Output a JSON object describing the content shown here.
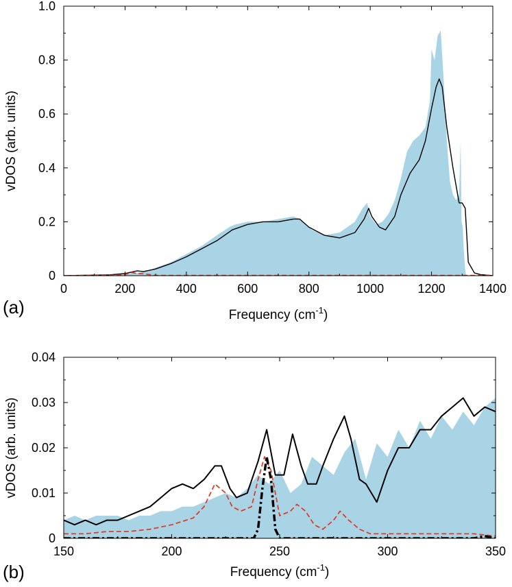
{
  "chart_data": [
    {
      "panel_label": "(a)",
      "type": "area",
      "xlabel": "Frequency (cm",
      "xlabel_sup": "-1",
      "xlabel_close": ")",
      "ylabel": "vDOS (arb. units)",
      "xlim": [
        0,
        1400
      ],
      "ylim": [
        0,
        1.0
      ],
      "xticks": [
        0,
        200,
        400,
        600,
        800,
        1000,
        1200,
        1400
      ],
      "yticks": [
        0,
        0.2,
        0.4,
        0.6,
        0.8,
        1.0
      ],
      "ytick_labels": [
        "0",
        "0.2",
        "0.4",
        "0.6",
        "0.8",
        "1.0"
      ],
      "grid": false,
      "series": [
        {
          "style": "filled-area",
          "color": "#a8d4e6",
          "x": [
            0,
            100,
            150,
            200,
            250,
            280,
            300,
            350,
            400,
            450,
            500,
            540,
            560,
            600,
            650,
            700,
            750,
            770,
            790,
            810,
            850,
            900,
            950,
            975,
            990,
            1000,
            1020,
            1040,
            1060,
            1080,
            1100,
            1120,
            1140,
            1160,
            1180,
            1195,
            1200,
            1210,
            1220,
            1230,
            1240,
            1250,
            1260,
            1270,
            1280,
            1290,
            1295,
            1298,
            1302,
            1305,
            1310,
            1313
          ],
          "y": [
            0,
            0.002,
            0.004,
            0.008,
            0.012,
            0.018,
            0.03,
            0.05,
            0.08,
            0.11,
            0.15,
            0.18,
            0.19,
            0.2,
            0.2,
            0.21,
            0.22,
            0.21,
            0.19,
            0.17,
            0.15,
            0.16,
            0.2,
            0.25,
            0.27,
            0.22,
            0.19,
            0.2,
            0.23,
            0.28,
            0.36,
            0.46,
            0.5,
            0.52,
            0.55,
            0.65,
            0.84,
            0.8,
            0.89,
            0.91,
            0.72,
            0.5,
            0.35,
            0.3,
            0.28,
            0.3,
            0.5,
            0.2,
            0.18,
            0.1,
            0.02,
            0
          ]
        },
        {
          "style": "solid-line",
          "color": "#000000",
          "x": [
            0,
            100,
            150,
            200,
            240,
            260,
            300,
            350,
            400,
            450,
            500,
            550,
            600,
            650,
            700,
            750,
            770,
            800,
            850,
            900,
            950,
            980,
            995,
            1005,
            1030,
            1050,
            1080,
            1100,
            1130,
            1160,
            1180,
            1200,
            1215,
            1225,
            1235,
            1250,
            1270,
            1290,
            1300,
            1310,
            1320,
            1340,
            1360,
            1400
          ],
          "y": [
            0,
            0.002,
            0.003,
            0.008,
            0.018,
            0.015,
            0.025,
            0.045,
            0.07,
            0.1,
            0.13,
            0.17,
            0.19,
            0.2,
            0.2,
            0.21,
            0.21,
            0.18,
            0.15,
            0.14,
            0.16,
            0.21,
            0.25,
            0.22,
            0.18,
            0.17,
            0.22,
            0.3,
            0.38,
            0.43,
            0.5,
            0.62,
            0.7,
            0.73,
            0.7,
            0.55,
            0.4,
            0.27,
            0.27,
            0.25,
            0.05,
            0.01,
            0.004,
            0
          ]
        },
        {
          "style": "dashed-line",
          "color": "#e03c28",
          "x": [
            0,
            150,
            200,
            220,
            240,
            260,
            280,
            300,
            1400
          ],
          "y": [
            0,
            0.001,
            0.004,
            0.012,
            0.008,
            0.007,
            0.004,
            0.001,
            0.001
          ]
        }
      ]
    },
    {
      "panel_label": "(b)",
      "type": "area",
      "xlabel": "Frequency (cm",
      "xlabel_sup": "-1",
      "xlabel_close": ")",
      "ylabel": "vDOS (arb. units)",
      "xlim": [
        150,
        350
      ],
      "ylim": [
        0,
        0.04
      ],
      "xticks": [
        150,
        200,
        250,
        300,
        350
      ],
      "yticks": [
        0,
        0.01,
        0.02,
        0.03,
        0.04
      ],
      "ytick_labels": [
        "0",
        "0.01",
        "0.02",
        "0.03",
        "0.04"
      ],
      "grid": false,
      "series": [
        {
          "style": "filled-area",
          "color": "#a8d4e6",
          "x": [
            150,
            155,
            160,
            165,
            170,
            175,
            180,
            185,
            190,
            195,
            200,
            205,
            210,
            215,
            220,
            225,
            230,
            235,
            240,
            245,
            250,
            255,
            260,
            265,
            270,
            275,
            280,
            285,
            290,
            295,
            300,
            305,
            310,
            315,
            320,
            325,
            330,
            335,
            340,
            345,
            350
          ],
          "y": [
            0.004,
            0.005,
            0.004,
            0.005,
            0.005,
            0.005,
            0.004,
            0.005,
            0.005,
            0.006,
            0.006,
            0.007,
            0.007,
            0.008,
            0.009,
            0.01,
            0.009,
            0.011,
            0.014,
            0.012,
            0.015,
            0.01,
            0.012,
            0.018,
            0.016,
            0.014,
            0.019,
            0.022,
            0.013,
            0.021,
            0.018,
            0.024,
            0.02,
            0.026,
            0.022,
            0.027,
            0.024,
            0.028,
            0.025,
            0.029,
            0.031
          ]
        },
        {
          "style": "solid-line",
          "color": "#000000",
          "x": [
            150,
            155,
            160,
            165,
            170,
            175,
            180,
            185,
            190,
            195,
            200,
            205,
            210,
            215,
            220,
            223,
            227,
            230,
            235,
            240,
            244,
            248,
            252,
            256,
            260,
            263,
            267,
            270,
            275,
            280,
            283,
            287,
            290,
            295,
            300,
            305,
            310,
            315,
            320,
            325,
            330,
            335,
            340,
            345,
            350
          ],
          "y": [
            0.004,
            0.003,
            0.004,
            0.003,
            0.004,
            0.004,
            0.005,
            0.006,
            0.007,
            0.009,
            0.011,
            0.012,
            0.011,
            0.013,
            0.016,
            0.016,
            0.011,
            0.009,
            0.01,
            0.017,
            0.024,
            0.014,
            0.014,
            0.023,
            0.016,
            0.012,
            0.012,
            0.016,
            0.022,
            0.027,
            0.022,
            0.013,
            0.012,
            0.008,
            0.015,
            0.02,
            0.02,
            0.024,
            0.024,
            0.027,
            0.029,
            0.031,
            0.027,
            0.029,
            0.028
          ]
        },
        {
          "style": "dashed-line",
          "color": "#e03c28",
          "x": [
            150,
            160,
            170,
            180,
            190,
            200,
            210,
            215,
            220,
            225,
            228,
            232,
            237,
            240,
            243,
            246,
            250,
            255,
            258,
            262,
            266,
            270,
            275,
            278,
            282,
            287,
            292,
            300,
            320,
            340,
            350
          ],
          "y": [
            0.001,
            0.001,
            0.0015,
            0.0015,
            0.002,
            0.003,
            0.0045,
            0.007,
            0.012,
            0.01,
            0.007,
            0.006,
            0.007,
            0.013,
            0.018,
            0.015,
            0.005,
            0.006,
            0.0075,
            0.006,
            0.003,
            0.002,
            0.004,
            0.006,
            0.004,
            0.002,
            0.001,
            0.001,
            0.001,
            0.001,
            0.0005
          ]
        },
        {
          "style": "dash-dot-line",
          "color": "#000000",
          "x": [
            150,
            238,
            240,
            242,
            244,
            246,
            248,
            250,
            252,
            340,
            345,
            350
          ],
          "y": [
            0,
            0,
            0.002,
            0.011,
            0.018,
            0.013,
            0.002,
            0,
            0,
            0,
            0.0005,
            0
          ]
        }
      ]
    }
  ]
}
